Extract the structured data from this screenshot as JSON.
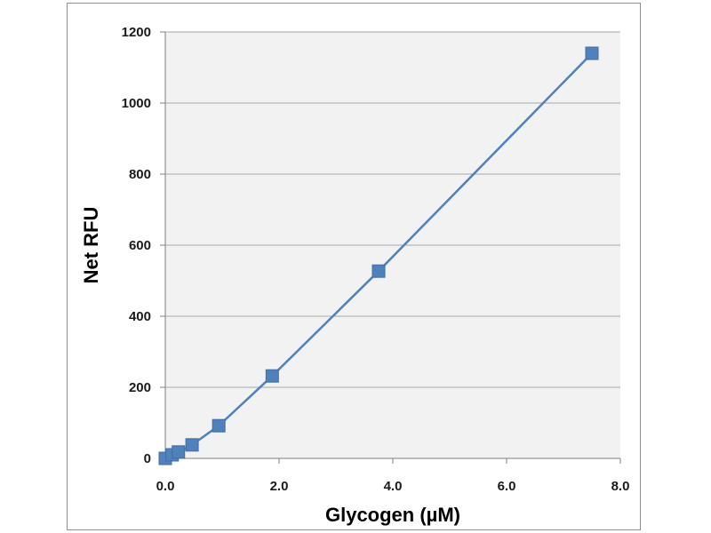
{
  "chart_data": {
    "type": "line",
    "title": "",
    "xlabel": "Glycogen (µM)",
    "ylabel": "Net RFU",
    "xlim": [
      0,
      8
    ],
    "ylim": [
      0,
      1200
    ],
    "x_ticks": [
      "0.0",
      "2.0",
      "4.0",
      "6.0",
      "8.0"
    ],
    "y_ticks": [
      "0",
      "200",
      "400",
      "600",
      "800",
      "1000",
      "1200"
    ],
    "grid": "horizontal",
    "legend": "none",
    "marker": "square",
    "series": [
      {
        "x": [
          0,
          0.12,
          0.23,
          0.47,
          0.94,
          1.88,
          3.75,
          7.5
        ],
        "y": [
          0,
          10,
          18,
          38,
          92,
          232,
          527,
          1140
        ]
      }
    ],
    "colors": {
      "series": "#4f81bd",
      "plot_area": "#f2f2f2",
      "gridline": "#a6a6a6",
      "frame": "#8e8e8e"
    }
  }
}
